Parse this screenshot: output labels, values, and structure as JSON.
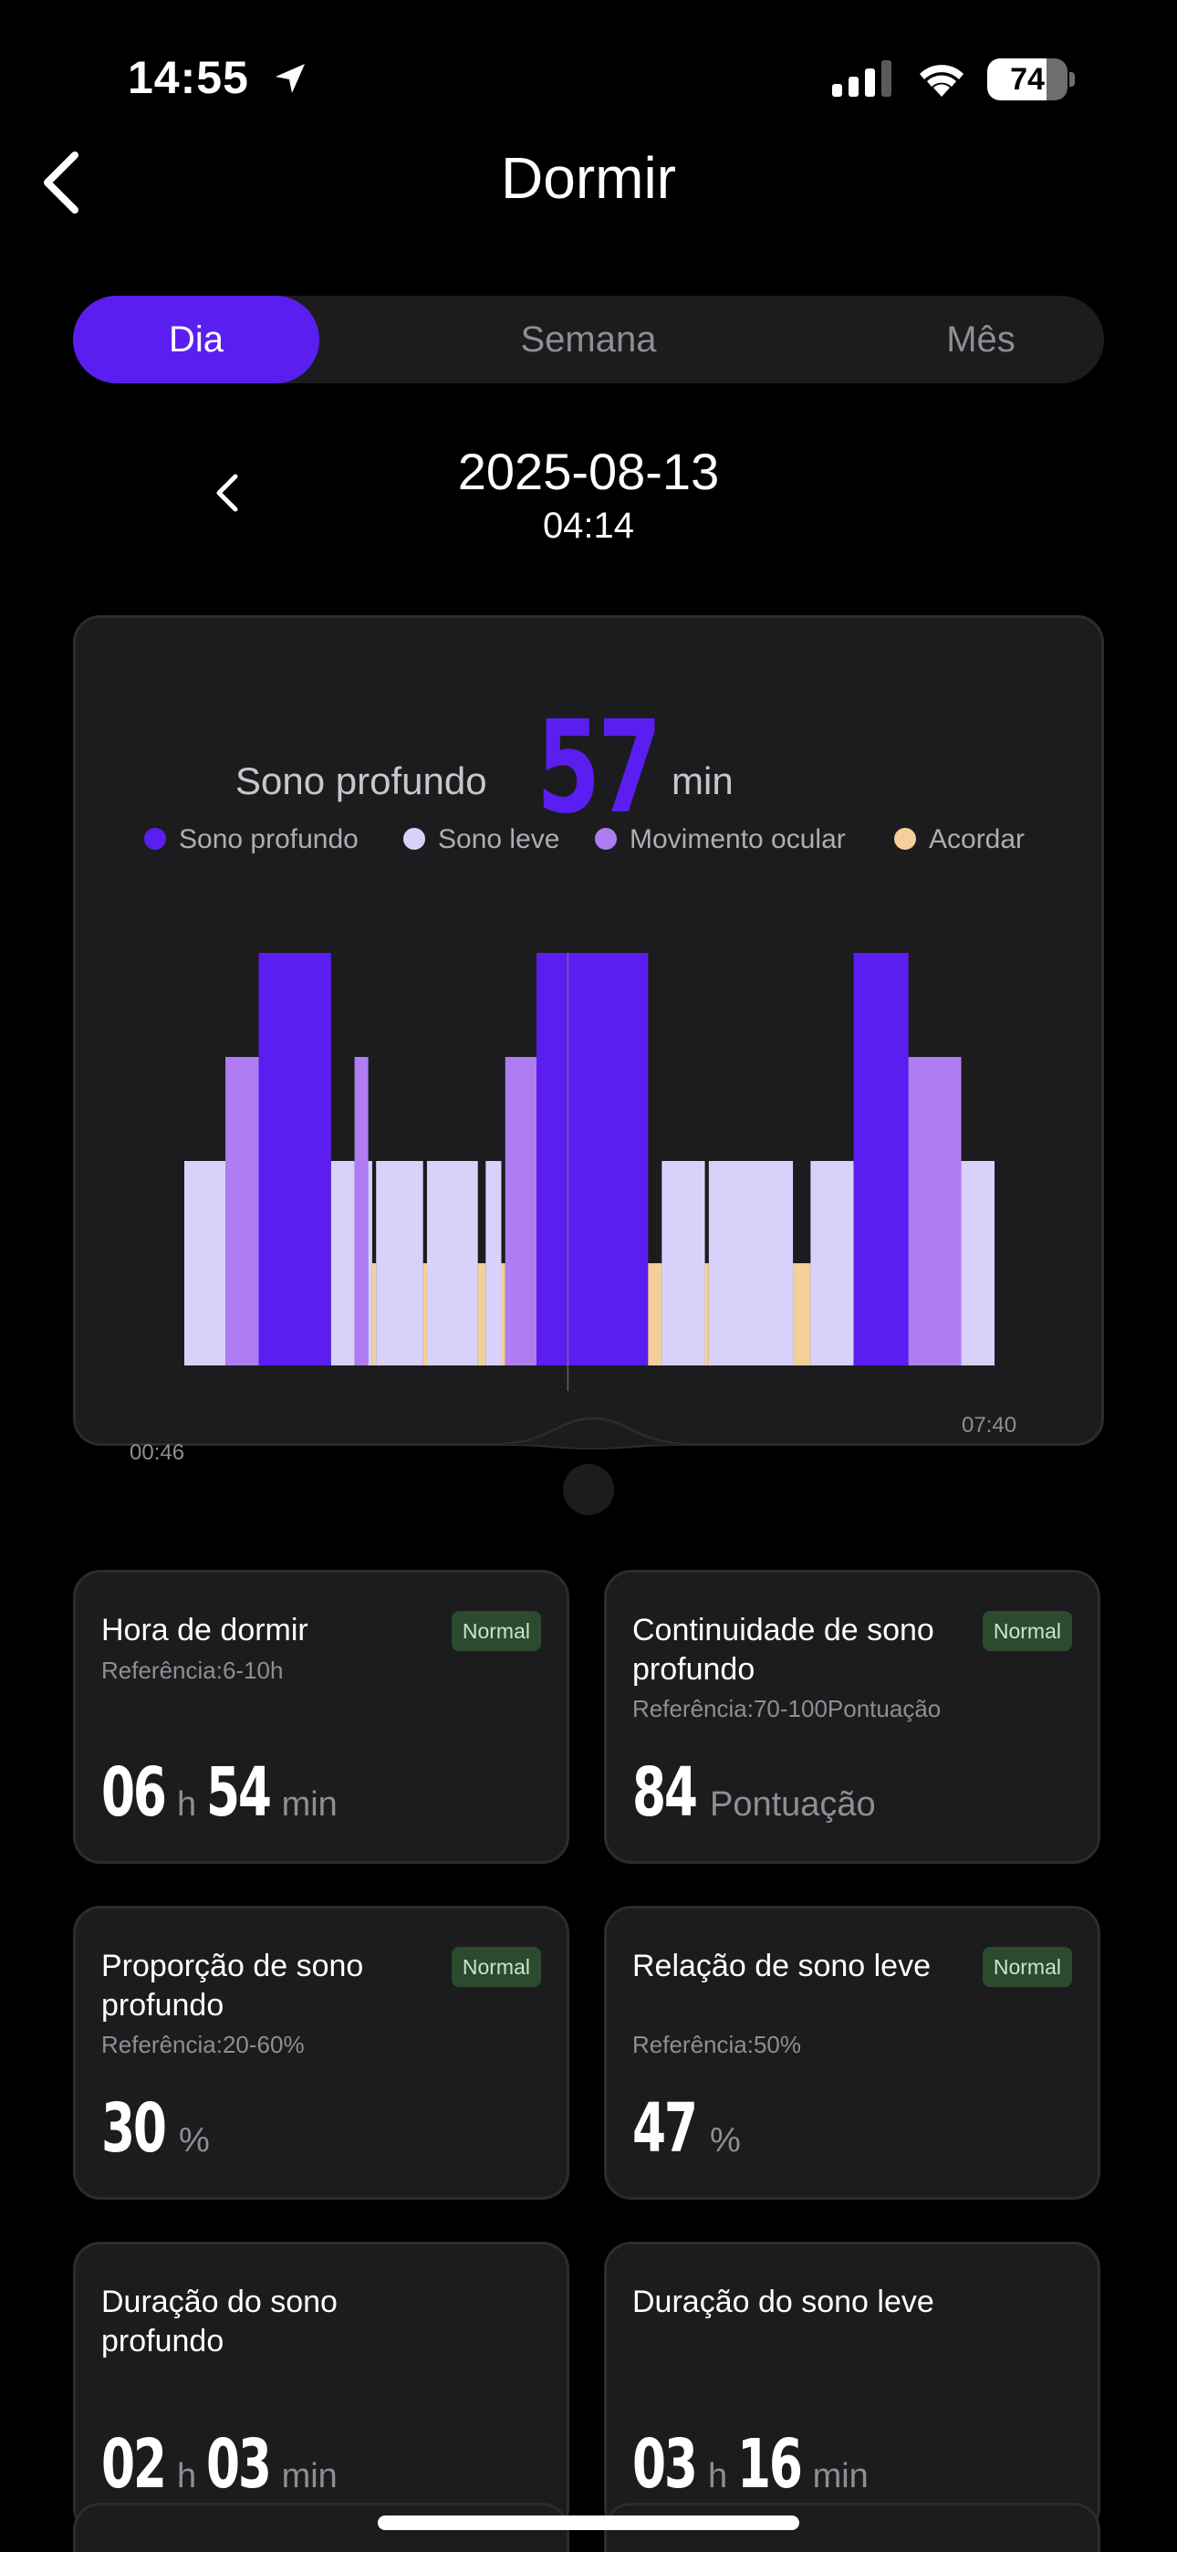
{
  "status_bar": {
    "time": "14:55",
    "battery": "74",
    "battery_level": 0.74
  },
  "header": {
    "title": "Dormir"
  },
  "tabs": [
    {
      "label": "Dia",
      "active": true
    },
    {
      "label": "Semana",
      "active": false
    },
    {
      "label": "Mês",
      "active": false
    }
  ],
  "date_nav": {
    "date": "2025-08-13",
    "time": "04:14"
  },
  "summary": {
    "label": "Sono profundo",
    "value": "57",
    "unit": "min"
  },
  "colors": {
    "accent": "#5b1ef0",
    "deep": "#5b1ef0",
    "light": "#d8d2fb",
    "rem": "#b07cf2",
    "awake": "#f5cf9a",
    "card": "#1c1c1e",
    "badge_bg": "#2c4a2e"
  },
  "chart_data": {
    "type": "bar",
    "legend": [
      {
        "name": "Sono profundo",
        "color": "#5b1ef0"
      },
      {
        "name": "Sono leve",
        "color": "#d8d2fb"
      },
      {
        "name": "Movimento ocular",
        "color": "#b07cf2"
      },
      {
        "name": "Acordar",
        "color": "#f5cf9a"
      }
    ],
    "x_start_label": "00:46",
    "x_end_label": "07:40",
    "x_start_min": 0,
    "x_end_min": 414,
    "stage_levels": {
      "awake": 1,
      "light": 2,
      "rem": 3,
      "deep": 4
    },
    "segments": [
      {
        "stage": "light",
        "start": 0,
        "end": 21
      },
      {
        "stage": "rem",
        "start": 21,
        "end": 38
      },
      {
        "stage": "deep",
        "start": 38,
        "end": 75
      },
      {
        "stage": "light",
        "start": 75,
        "end": 87
      },
      {
        "stage": "rem",
        "start": 87,
        "end": 94
      },
      {
        "stage": "light",
        "start": 94,
        "end": 96
      },
      {
        "stage": "awake",
        "start": 96,
        "end": 98
      },
      {
        "stage": "light",
        "start": 98,
        "end": 122
      },
      {
        "stage": "awake",
        "start": 122,
        "end": 124
      },
      {
        "stage": "light",
        "start": 124,
        "end": 150
      },
      {
        "stage": "awake",
        "start": 150,
        "end": 154
      },
      {
        "stage": "light",
        "start": 154,
        "end": 162
      },
      {
        "stage": "awake",
        "start": 162,
        "end": 164
      },
      {
        "stage": "rem",
        "start": 164,
        "end": 180
      },
      {
        "stage": "deep",
        "start": 180,
        "end": 237
      },
      {
        "stage": "awake",
        "start": 237,
        "end": 244
      },
      {
        "stage": "light",
        "start": 244,
        "end": 266
      },
      {
        "stage": "awake",
        "start": 266,
        "end": 268
      },
      {
        "stage": "light",
        "start": 268,
        "end": 311
      },
      {
        "stage": "awake",
        "start": 311,
        "end": 320
      },
      {
        "stage": "light",
        "start": 320,
        "end": 342
      },
      {
        "stage": "deep",
        "start": 342,
        "end": 370
      },
      {
        "stage": "rem",
        "start": 370,
        "end": 397
      },
      {
        "stage": "light",
        "start": 397,
        "end": 414
      }
    ]
  },
  "stats": [
    {
      "title": "Hora de dormir",
      "reference": "Referência:6-10h",
      "badge": "Normal",
      "parts": [
        {
          "text": "06",
          "kind": "big"
        },
        {
          "text": "h",
          "kind": "unit"
        },
        {
          "text": "54",
          "kind": "big"
        },
        {
          "text": "min",
          "kind": "unit"
        }
      ]
    },
    {
      "title": "Continuidade de sono profundo",
      "reference": "Referência:70-100Pontuação",
      "badge": "Normal",
      "parts": [
        {
          "text": "84",
          "kind": "big"
        },
        {
          "text": "Pontuação",
          "kind": "unit"
        }
      ]
    },
    {
      "title": "Proporção de sono profundo",
      "reference": "Referência:20-60%",
      "badge": "Normal",
      "parts": [
        {
          "text": "30",
          "kind": "big"
        },
        {
          "text": "%",
          "kind": "unit"
        }
      ]
    },
    {
      "title": "Relação de sono leve",
      "reference": "Referência:50%",
      "badge": "Normal",
      "parts": [
        {
          "text": "47",
          "kind": "big"
        },
        {
          "text": "%",
          "kind": "unit"
        }
      ]
    },
    {
      "title": "Duração do sono profundo",
      "reference": "",
      "badge": "",
      "parts": [
        {
          "text": "02",
          "kind": "big"
        },
        {
          "text": "h",
          "kind": "unit"
        },
        {
          "text": "03",
          "kind": "big"
        },
        {
          "text": "min",
          "kind": "unit"
        }
      ]
    },
    {
      "title": "Duração do sono leve",
      "reference": "",
      "badge": "",
      "parts": [
        {
          "text": "03",
          "kind": "big"
        },
        {
          "text": "h",
          "kind": "unit"
        },
        {
          "text": "16",
          "kind": "big"
        },
        {
          "text": "min",
          "kind": "unit"
        }
      ]
    }
  ]
}
